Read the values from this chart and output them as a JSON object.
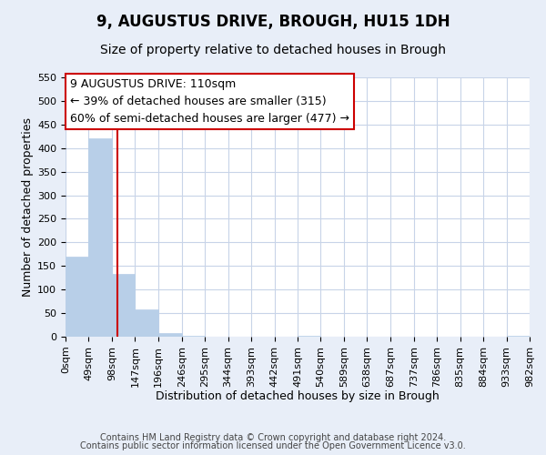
{
  "title": "9, AUGUSTUS DRIVE, BROUGH, HU15 1DH",
  "subtitle": "Size of property relative to detached houses in Brough",
  "xlabel": "Distribution of detached houses by size in Brough",
  "ylabel": "Number of detached properties",
  "bin_edges": [
    0,
    49,
    98,
    147,
    196,
    246,
    295,
    344,
    393,
    442,
    491,
    540,
    589,
    638,
    687,
    737,
    786,
    835,
    884,
    933,
    982
  ],
  "bin_labels": [
    "0sqm",
    "49sqm",
    "98sqm",
    "147sqm",
    "196sqm",
    "246sqm",
    "295sqm",
    "344sqm",
    "393sqm",
    "442sqm",
    "491sqm",
    "540sqm",
    "589sqm",
    "638sqm",
    "687sqm",
    "737sqm",
    "786sqm",
    "835sqm",
    "884sqm",
    "933sqm",
    "982sqm"
  ],
  "counts": [
    170,
    420,
    133,
    57,
    7,
    2,
    0,
    0,
    0,
    0,
    2,
    0,
    0,
    0,
    0,
    0,
    0,
    0,
    0,
    2
  ],
  "bar_color": "#b8cfe8",
  "bar_edgecolor": "#b8cfe8",
  "vline_x": 110,
  "vline_color": "#cc0000",
  "annotation_line1": "9 AUGUSTUS DRIVE: 110sqm",
  "annotation_line2": "← 39% of detached houses are smaller (315)",
  "annotation_line3": "60% of semi-detached houses are larger (477) →",
  "annotation_box_edgecolor": "#cc0000",
  "ylim": [
    0,
    550
  ],
  "yticks": [
    0,
    50,
    100,
    150,
    200,
    250,
    300,
    350,
    400,
    450,
    500,
    550
  ],
  "footer_line1": "Contains HM Land Registry data © Crown copyright and database right 2024.",
  "footer_line2": "Contains public sector information licensed under the Open Government Licence v3.0.",
  "background_color": "#e8eef8",
  "plot_background": "#ffffff",
  "grid_color": "#c8d4e8",
  "title_fontsize": 12,
  "subtitle_fontsize": 10,
  "axis_label_fontsize": 9,
  "tick_fontsize": 8,
  "annotation_fontsize": 9,
  "footer_fontsize": 7
}
